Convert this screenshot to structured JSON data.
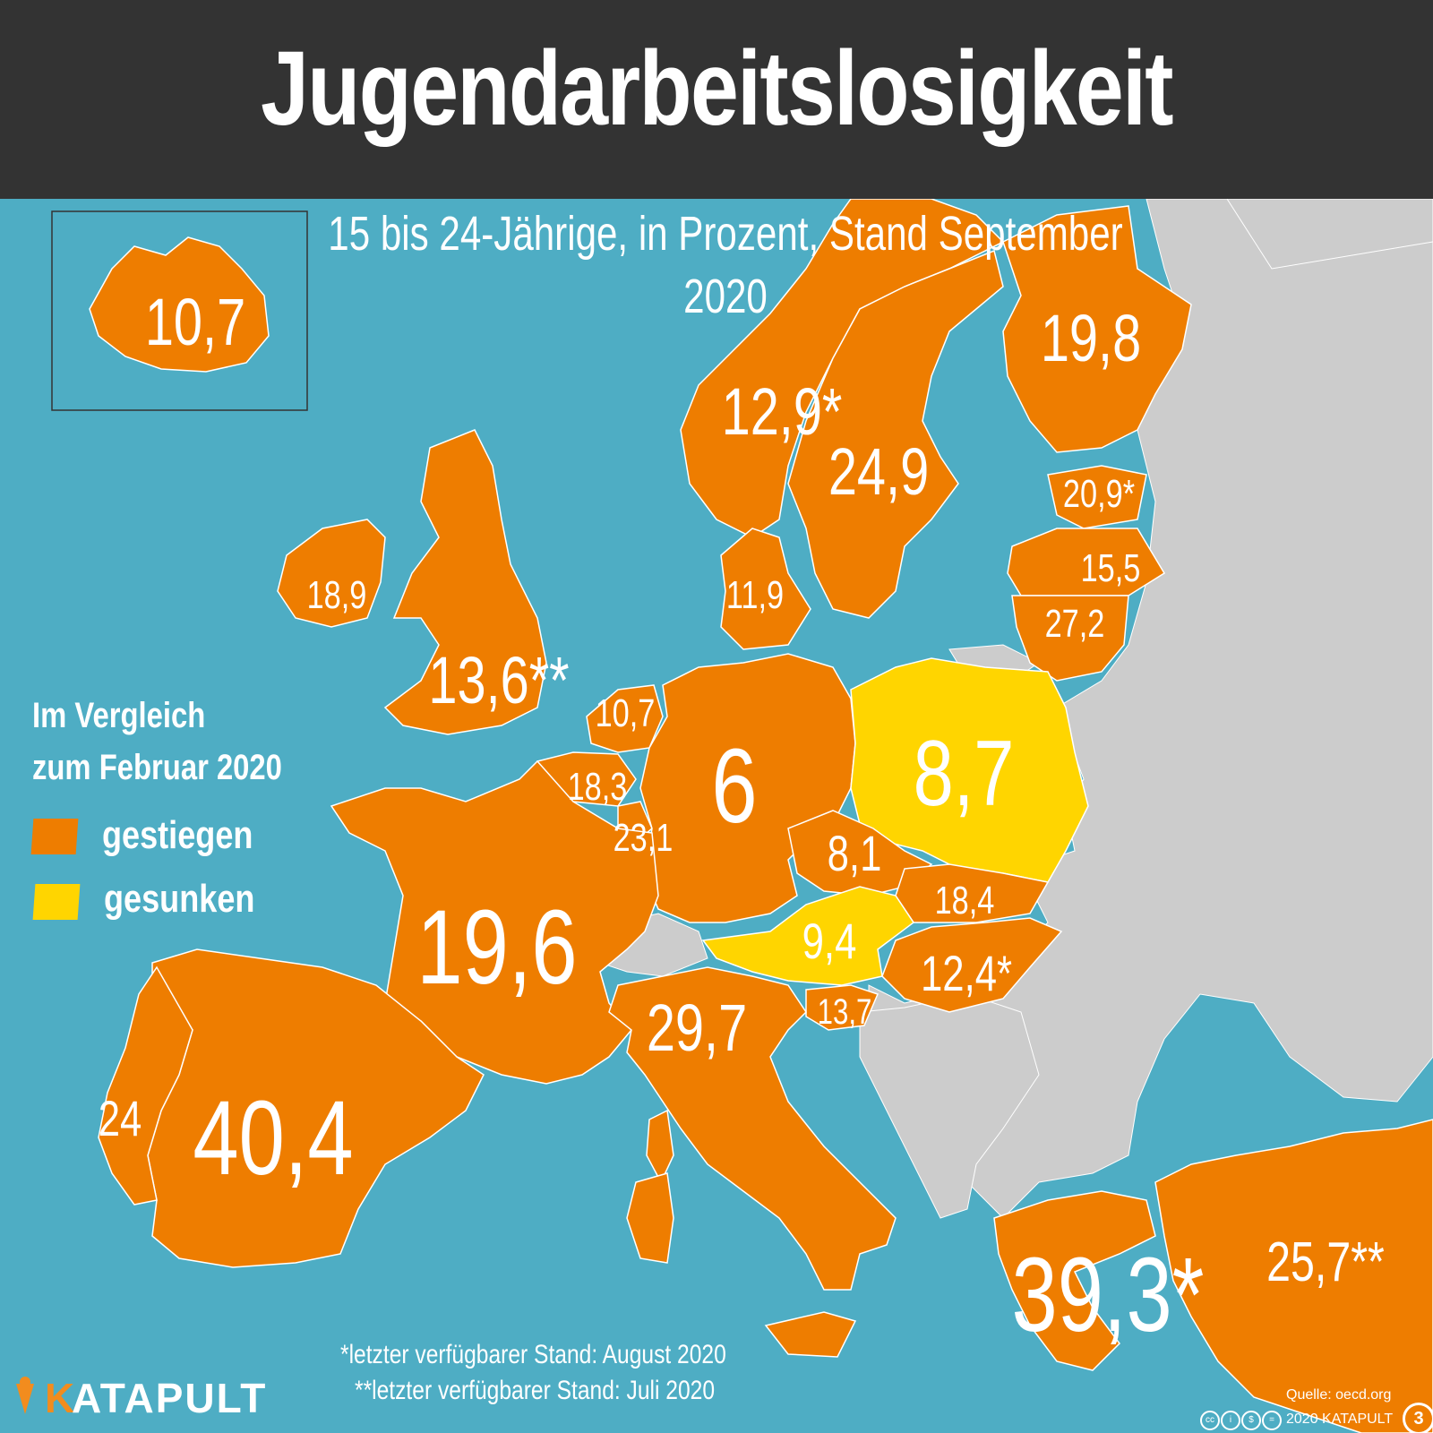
{
  "title": "Jugendarbeitslosigkeit",
  "subtitle": "15 bis 24-Jährige, in Prozent, Stand September 2020",
  "colors": {
    "sea": "#4eadc4",
    "header": "#333333",
    "increased": "#ee7d00",
    "decreased": "#ffd500",
    "no_data": "#cccccc",
    "text": "#ffffff"
  },
  "legend": {
    "title_line1": "Im Vergleich",
    "title_line2": "zum Februar 2020",
    "increased": "gestiegen",
    "decreased": "gesunken"
  },
  "values": [
    {
      "label": "10,7",
      "trend": "increased"
    },
    {
      "label": "19,8",
      "trend": "increased"
    },
    {
      "label": "12,9*",
      "trend": "increased"
    },
    {
      "label": "24,9",
      "trend": "increased"
    },
    {
      "label": "20,9*",
      "trend": "increased"
    },
    {
      "label": "15,5",
      "trend": "increased"
    },
    {
      "label": "27,2",
      "trend": "increased"
    },
    {
      "label": "18,9",
      "trend": "increased"
    },
    {
      "label": "11,9",
      "trend": "increased"
    },
    {
      "label": "13,6**",
      "trend": "increased"
    },
    {
      "label": "10,7",
      "trend": "increased"
    },
    {
      "label": "18,3",
      "trend": "increased"
    },
    {
      "label": "23,1",
      "trend": "increased"
    },
    {
      "label": "6",
      "trend": "increased"
    },
    {
      "label": "8,7",
      "trend": "decreased"
    },
    {
      "label": "8,1",
      "trend": "increased"
    },
    {
      "label": "18,4",
      "trend": "increased"
    },
    {
      "label": "19,6",
      "trend": "increased"
    },
    {
      "label": "9,4",
      "trend": "decreased"
    },
    {
      "label": "12,4*",
      "trend": "increased"
    },
    {
      "label": "29,7",
      "trend": "increased"
    },
    {
      "label": "13,7",
      "trend": "increased"
    },
    {
      "label": "24",
      "trend": "increased"
    },
    {
      "label": "40,4",
      "trend": "increased"
    },
    {
      "label": "39,3*",
      "trend": "increased"
    },
    {
      "label": "25,7**",
      "trend": "increased"
    }
  ],
  "footnotes": {
    "one_star": "*letzter verfügbarer Stand: August 2020",
    "two_star": "**letzter verfügbarer Stand: Juli 2020"
  },
  "brand": {
    "k": "K",
    "rest": "ATAPULT"
  },
  "source": "Quelle: oecd.org",
  "copyright": "2020 KATAPULT",
  "issue_badge": "3"
}
